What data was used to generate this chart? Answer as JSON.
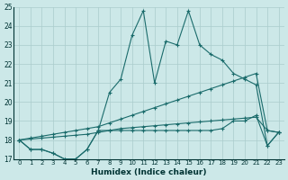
{
  "xlabel": "Humidex (Indice chaleur)",
  "xlim": [
    -0.5,
    23.5
  ],
  "ylim": [
    17,
    25
  ],
  "yticks": [
    17,
    18,
    19,
    20,
    21,
    22,
    23,
    24,
    25
  ],
  "xticks": [
    0,
    1,
    2,
    3,
    4,
    5,
    6,
    7,
    8,
    9,
    10,
    11,
    12,
    13,
    14,
    15,
    16,
    17,
    18,
    19,
    20,
    21,
    22,
    23
  ],
  "bg_color": "#cce8e8",
  "grid_color": "#aacccc",
  "line_color": "#1a6b6b",
  "series": [
    [
      18.0,
      17.5,
      17.5,
      17.3,
      17.0,
      17.0,
      17.5,
      18.5,
      20.5,
      21.2,
      23.5,
      24.8,
      21.0,
      23.2,
      23.0,
      24.8,
      23.0,
      22.5,
      22.2,
      21.5,
      21.2,
      20.9,
      17.7,
      18.4
    ],
    [
      18.0,
      17.5,
      17.5,
      17.3,
      17.0,
      17.0,
      17.5,
      18.5,
      18.5,
      18.5,
      18.5,
      18.5,
      18.5,
      18.5,
      18.5,
      18.5,
      18.5,
      18.5,
      18.6,
      19.0,
      19.0,
      19.3,
      17.7,
      18.4
    ],
    [
      18.0,
      18.1,
      18.2,
      18.3,
      18.4,
      18.5,
      18.6,
      18.7,
      18.9,
      19.1,
      19.3,
      19.5,
      19.7,
      19.9,
      20.1,
      20.3,
      20.5,
      20.7,
      20.9,
      21.1,
      21.3,
      21.5,
      18.5,
      18.4
    ],
    [
      18.0,
      18.05,
      18.1,
      18.15,
      18.2,
      18.25,
      18.3,
      18.4,
      18.5,
      18.6,
      18.65,
      18.7,
      18.75,
      18.8,
      18.85,
      18.9,
      18.95,
      19.0,
      19.05,
      19.1,
      19.15,
      19.2,
      18.5,
      18.4
    ]
  ]
}
